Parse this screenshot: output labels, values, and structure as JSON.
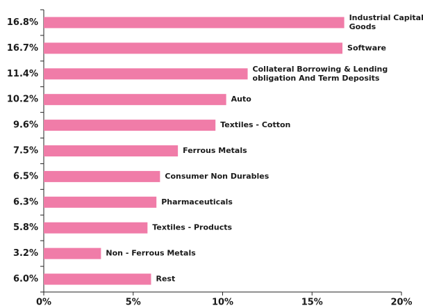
{
  "chart_data": {
    "type": "bar",
    "orientation": "horizontal",
    "categories": [
      "Industrial Capital\nGoods",
      "Software",
      "Collateral Borrowing & Lending\nobligation And Term Deposits",
      "Auto",
      "Textiles - Cotton",
      "Ferrous Metals",
      "Consumer Non Durables",
      "Pharmaceuticals",
      "Textiles - Products",
      "Non - Ferrous Metals",
      "Rest"
    ],
    "values": [
      16.8,
      16.7,
      11.4,
      10.2,
      9.6,
      7.5,
      6.5,
      6.3,
      5.8,
      3.2,
      6.0
    ],
    "value_labels": [
      "16.8%",
      "16.7%",
      "11.4%",
      "10.2%",
      "9.6%",
      "7.5%",
      "6.5%",
      "6.3%",
      "5.8%",
      "3.2%",
      "6.0%"
    ],
    "color": "#f07ca8",
    "xlim": [
      0,
      20
    ],
    "xticks": [
      {
        "value": 0,
        "label": "0%"
      },
      {
        "value": 5,
        "label": "5%"
      },
      {
        "value": 10,
        "label": "10%"
      },
      {
        "value": 15,
        "label": "15%"
      },
      {
        "value": 20,
        "label": "20%"
      }
    ],
    "grid": false
  }
}
